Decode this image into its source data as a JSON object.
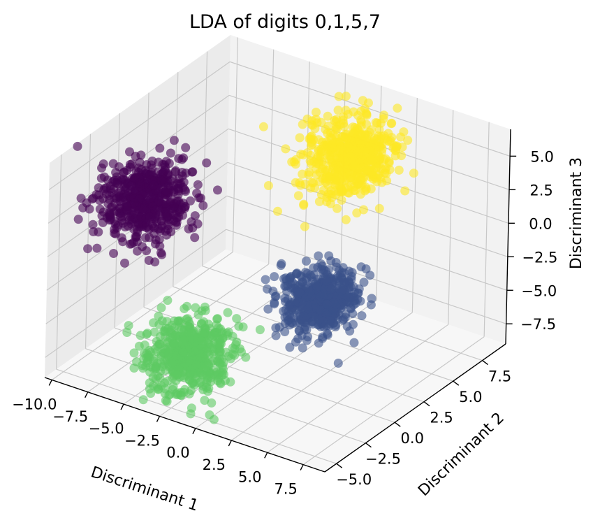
{
  "chart_data": {
    "type": "scatter",
    "projection": "3d",
    "title": "LDA of digits 0,1,5,7",
    "xlabel": "Discriminant 1",
    "ylabel": "Discriminant 2",
    "zlabel": "Discriminant 3",
    "xlim": [
      -10.5,
      9
    ],
    "ylim": [
      -6,
      9.5
    ],
    "zlim": [
      -9,
      7
    ],
    "xticks": [
      "−10.0",
      "−7.5",
      "−5.0",
      "−2.5",
      "0.0",
      "2.5",
      "5.0",
      "7.5"
    ],
    "yticks": [
      "−5.0",
      "−2.5",
      "0.0",
      "2.5",
      "5.0",
      "7.5"
    ],
    "zticks": [
      "−7.5",
      "−5.0",
      "−2.5",
      "0.0",
      "2.5",
      "5.0"
    ],
    "grid": true,
    "marker_alpha": 0.6,
    "colormap": "viridis",
    "series": [
      {
        "color": "#440154",
        "cluster_center_screen_hint": "upper-left",
        "center": [
          -7.0,
          -2.0,
          3.0
        ],
        "spread": [
          1.3,
          1.3,
          1.3
        ]
      },
      {
        "color": "#3b528b",
        "center": [
          4.0,
          -0.5,
          -1.5
        ],
        "spread": [
          1.0,
          1.0,
          1.0
        ]
      },
      {
        "color": "#5ec962",
        "center": [
          -2.5,
          -3.5,
          -6.0
        ],
        "spread": [
          1.2,
          1.2,
          1.2
        ]
      },
      {
        "color": "#fde725",
        "center": [
          1.5,
          5.0,
          5.0
        ],
        "spread": [
          1.3,
          1.3,
          1.3
        ]
      }
    ]
  }
}
